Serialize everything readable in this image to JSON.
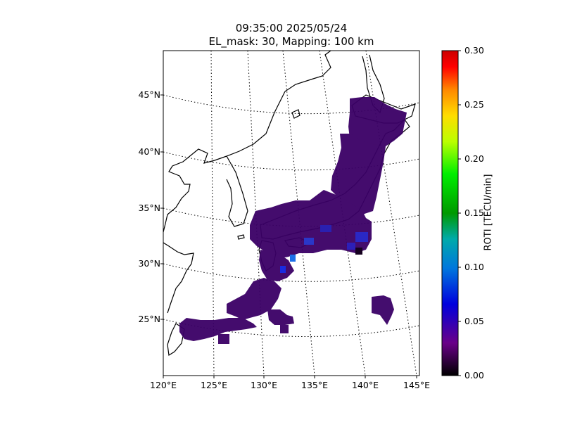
{
  "title": {
    "line1": "09:35:00 2025/05/24",
    "line2": "EL_mask: 30, Mapping: 100 km"
  },
  "map": {
    "lat_ticks": [
      "45°N",
      "40°N",
      "35°N",
      "30°N",
      "25°N"
    ],
    "lon_ticks": [
      "120°E",
      "125°E",
      "130°E",
      "135°E",
      "140°E",
      "145°E"
    ],
    "lon_range": [
      120,
      145
    ],
    "lat_range": [
      20,
      49
    ],
    "projection": "conic",
    "graticule": "dotted",
    "coastlines": true,
    "data_color": "#3a0066"
  },
  "colorbar": {
    "label": "ROTI [TECU/min]",
    "ticks": [
      "0.30",
      "0.25",
      "0.20",
      "0.15",
      "0.10",
      "0.05",
      "0.00"
    ],
    "range": [
      0,
      0.3
    ],
    "colormap": "nipy_spectral"
  },
  "chart_data": {
    "type": "heatmap",
    "title": "09:35:00 2025/05/24 EL_mask: 30, Mapping: 100 km",
    "xlabel": "",
    "ylabel": "",
    "colorbar_label": "ROTI [TECU/min]",
    "value_range": [
      0,
      0.3
    ],
    "typical_value": 0.04,
    "max_value_observed": 0.1,
    "coverage": "Japanese archipelago and Ryukyu Islands",
    "lon_ticks": [
      120,
      125,
      130,
      135,
      140,
      145
    ],
    "lat_ticks": [
      25,
      30,
      35,
      40,
      45
    ]
  }
}
